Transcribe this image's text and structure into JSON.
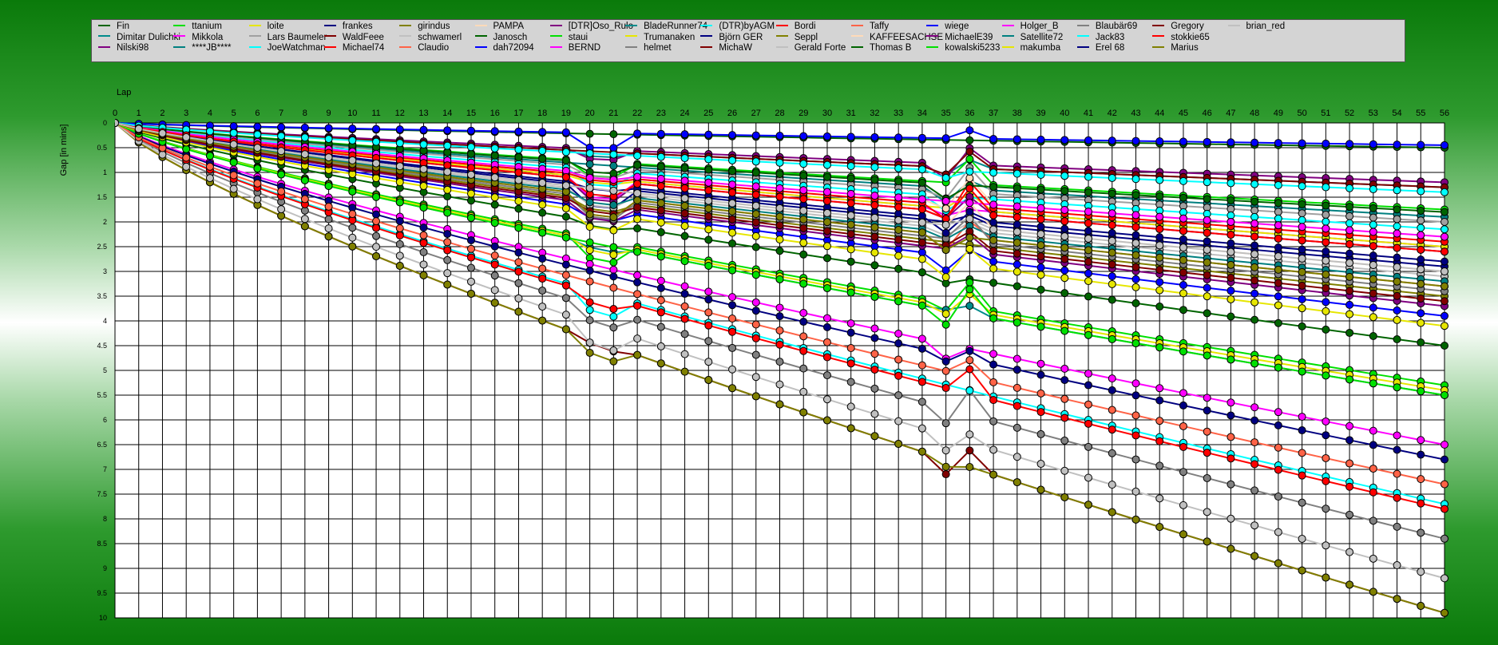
{
  "chart_data": {
    "type": "line",
    "xlabel": "Lap",
    "ylabel": "Gap [in mins]",
    "x": [
      0,
      1,
      2,
      3,
      4,
      5,
      6,
      7,
      8,
      9,
      10,
      11,
      12,
      13,
      14,
      15,
      16,
      17,
      18,
      19,
      20,
      21,
      22,
      23,
      24,
      25,
      26,
      27,
      28,
      29,
      30,
      31,
      32,
      33,
      34,
      35,
      36,
      37,
      38,
      39,
      40,
      41,
      42,
      43,
      44,
      45,
      46,
      47,
      48,
      49,
      50,
      51,
      52,
      53,
      54,
      55,
      56
    ],
    "ylim": [
      0,
      10
    ],
    "yticks": [
      "0",
      "0.5",
      "1",
      "1.5",
      "2",
      "2.5",
      "3",
      "3.5",
      "4",
      "4.5",
      "5",
      "5.5",
      "6",
      "6.5",
      "7",
      "7.5",
      "8",
      "8.5",
      "9",
      "9.5",
      "10"
    ],
    "y_inverted": true,
    "grid": true,
    "legend_position": "top",
    "series": [
      {
        "name": "Fin",
        "color": "#006400",
        "final": 0.5
      },
      {
        "name": "Dimitar Dulichki",
        "color": "#008b8b",
        "final": 1.3
      },
      {
        "name": "Nilski98",
        "color": "#800080",
        "final": 1.2
      },
      {
        "name": "ttanium",
        "color": "#00e000",
        "final": 1.75
      },
      {
        "name": "Mikkola",
        "color": "#ff00ff",
        "final": 2.5
      },
      {
        "name": "****JB****",
        "color": "#008080",
        "final": 1.9
      },
      {
        "name": "loite",
        "color": "#e6e600",
        "final": 2.5
      },
      {
        "name": "Lars Baumeler",
        "color": "#a0a0a0",
        "final": 2.0
      },
      {
        "name": "JoeWatchman",
        "color": "#00ffff",
        "final": 2.15
      },
      {
        "name": "frankes",
        "color": "#000080",
        "final": 2.9
      },
      {
        "name": "WaldFeee",
        "color": "#800000",
        "final": 1.3
      },
      {
        "name": "Michael74",
        "color": "#ff0000",
        "final": 2.4
      },
      {
        "name": "girindus",
        "color": "#808000",
        "final": 3.5
      },
      {
        "name": "schwamerl",
        "color": "#c0c0c0",
        "final": 3.1
      },
      {
        "name": "Claudio",
        "color": "#ff6347",
        "final": 3.3
      },
      {
        "name": "PAMPA",
        "color": "#ffdab9",
        "final": 3.0
      },
      {
        "name": "Janosch",
        "color": "#006400",
        "final": 4.5
      },
      {
        "name": "dah72094",
        "color": "#0000ff",
        "final": 3.9
      },
      {
        "name": "[DTR]Oso_Rulo",
        "color": "#800080",
        "final": 3.7
      },
      {
        "name": "staui",
        "color": "#00e000",
        "final": 5.3
      },
      {
        "name": "BERND",
        "color": "#ff00ff",
        "final": 6.5
      },
      {
        "name": "BladeRunner74",
        "color": "#008b8b",
        "final": 5.5
      },
      {
        "name": "Trumanaken",
        "color": "#e6e600",
        "final": 5.4
      },
      {
        "name": "helmet",
        "color": "#808080",
        "final": 8.4
      },
      {
        "name": "(DTR)byAGM",
        "color": "#00ffff",
        "final": 7.7
      },
      {
        "name": "Björn GER",
        "color": "#000080",
        "final": 6.8
      },
      {
        "name": "MichaW",
        "color": "#800000",
        "final": 9.9
      },
      {
        "name": "Bordi",
        "color": "#ff0000",
        "final": 7.8
      },
      {
        "name": "Seppl",
        "color": "#808000",
        "final": 9.9
      },
      {
        "name": "Gerald Forte",
        "color": "#c0c0c0",
        "final": 9.2
      },
      {
        "name": "Taffy",
        "color": "#ff6347",
        "final": 7.3
      },
      {
        "name": "KAFFEESACHSE",
        "color": "#ffdab9",
        "final": 2.3
      },
      {
        "name": "Thomas B",
        "color": "#006400",
        "final": 1.8
      },
      {
        "name": "wiege",
        "color": "#0000ff",
        "final": 0.45
      },
      {
        "name": "MichaelE39",
        "color": "#800080",
        "final": 2.6
      },
      {
        "name": "kowalski5233",
        "color": "#00e000",
        "final": 5.5
      },
      {
        "name": "Holger_B",
        "color": "#ff00ff",
        "final": 2.3
      },
      {
        "name": "Satellite72",
        "color": "#008080",
        "final": 3.2
      },
      {
        "name": "makumba",
        "color": "#e6e600",
        "final": 4.1
      },
      {
        "name": "Blaubär69",
        "color": "#808080",
        "final": 3.4
      },
      {
        "name": "Jack83",
        "color": "#00ffff",
        "final": 1.4
      },
      {
        "name": "Erel 68",
        "color": "#000080",
        "final": 2.8
      },
      {
        "name": "Gregory",
        "color": "#800000",
        "final": 3.6
      },
      {
        "name": "stokkie65",
        "color": "#ff0000",
        "final": 2.6
      },
      {
        "name": "Marius",
        "color": "#808000",
        "final": 3.3
      },
      {
        "name": "brian_red",
        "color": "#c0c0c0",
        "final": 3.0
      }
    ]
  }
}
